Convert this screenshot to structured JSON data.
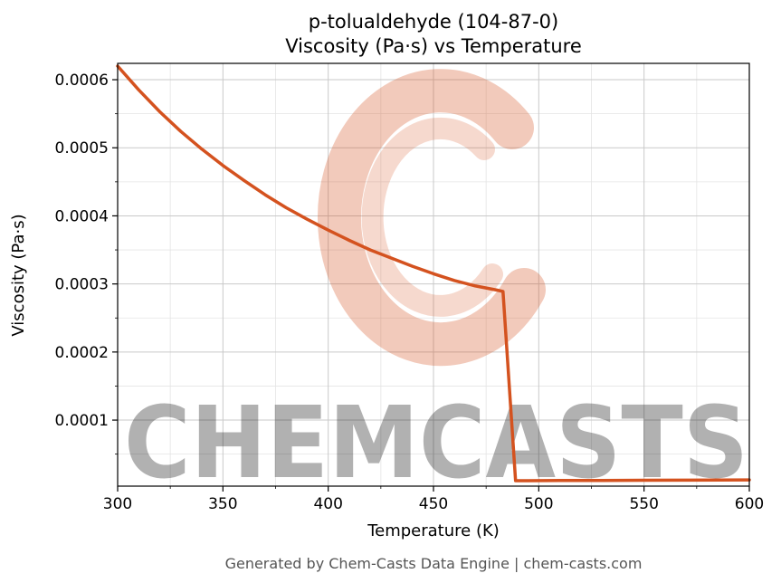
{
  "header": {
    "title_line1": "p-tolualdehyde (104-87-0)",
    "title_line2": "Viscosity (Pa·s) vs Temperature"
  },
  "footer": {
    "text": "Generated by Chem-Casts Data Engine | chem-casts.com"
  },
  "watermark": {
    "text": "CHEMCASTS",
    "color": "#d4511e"
  },
  "chart_data": {
    "type": "line",
    "title": "p-tolualdehyde (104-87-0)\nViscosity (Pa·s) vs Temperature",
    "xlabel": "Temperature (K)",
    "ylabel": "Viscosity (Pa·s)",
    "xlim": [
      300,
      600
    ],
    "ylim": [
      3e-06,
      0.000624
    ],
    "x_ticks": [
      300,
      350,
      400,
      450,
      500,
      550,
      600
    ],
    "x_tick_labels": [
      "300",
      "350",
      "400",
      "450",
      "500",
      "550",
      "600"
    ],
    "y_ticks": [
      0.0001,
      0.0002,
      0.0003,
      0.0004,
      0.0005,
      0.0006
    ],
    "y_tick_labels": [
      "0.0001",
      "0.0002",
      "0.0003",
      "0.0004",
      "0.0005",
      "0.0006"
    ],
    "x_minor_step": 25,
    "y_minor_step": 5e-05,
    "grid": true,
    "legend": false,
    "line_color": "#d4521f",
    "series": [
      {
        "name": "Viscosity (Pa·s)",
        "x": [
          300,
          310,
          320,
          330,
          340,
          350,
          360,
          370,
          380,
          390,
          400,
          410,
          420,
          430,
          440,
          450,
          460,
          470,
          480,
          483,
          489,
          495,
          510,
          530,
          550,
          570,
          600
        ],
        "y": [
          0.00062,
          0.000585,
          0.000553,
          0.000524,
          0.000498,
          0.000474,
          0.000452,
          0.000431,
          0.000412,
          0.000395,
          0.000379,
          0.000364,
          0.00035,
          0.000338,
          0.000326,
          0.000315,
          0.000305,
          0.000297,
          0.000291,
          0.000289,
          1.1e-05,
          1.1e-05,
          1.12e-05,
          1.14e-05,
          1.16e-05,
          1.18e-05,
          1.22e-05
        ]
      }
    ]
  }
}
